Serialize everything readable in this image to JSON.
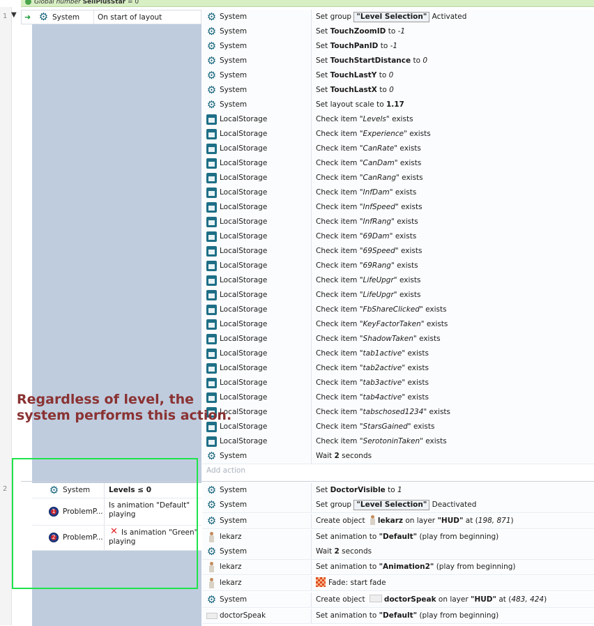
{
  "top_variable": {
    "prefix": "Global number",
    "name": "SellPlusStar",
    "suffix": "= 0"
  },
  "events": [
    {
      "number": "1",
      "conditions": [
        {
          "object": "System",
          "icon": "gear-icon",
          "text": "On start of layout"
        }
      ],
      "actions": [
        {
          "object": "System",
          "icon": "gear-icon",
          "parts": [
            {
              "t": "Set group "
            },
            {
              "t": "\"Level Selection\"",
              "s": "group"
            },
            {
              "t": " Activated"
            }
          ]
        },
        {
          "object": "System",
          "icon": "gear-icon",
          "parts": [
            {
              "t": "Set "
            },
            {
              "t": "TouchZoomID",
              "s": "b"
            },
            {
              "t": " to "
            },
            {
              "t": "-1",
              "s": "i"
            }
          ]
        },
        {
          "object": "System",
          "icon": "gear-icon",
          "parts": [
            {
              "t": "Set "
            },
            {
              "t": "TouchPanID",
              "s": "b"
            },
            {
              "t": " to "
            },
            {
              "t": "-1",
              "s": "i"
            }
          ]
        },
        {
          "object": "System",
          "icon": "gear-icon",
          "parts": [
            {
              "t": "Set "
            },
            {
              "t": "TouchStartDistance",
              "s": "b"
            },
            {
              "t": " to "
            },
            {
              "t": "0",
              "s": "i"
            }
          ]
        },
        {
          "object": "System",
          "icon": "gear-icon",
          "parts": [
            {
              "t": "Set "
            },
            {
              "t": "TouchLastY",
              "s": "b"
            },
            {
              "t": " to "
            },
            {
              "t": "0",
              "s": "i"
            }
          ]
        },
        {
          "object": "System",
          "icon": "gear-icon",
          "parts": [
            {
              "t": "Set "
            },
            {
              "t": "TouchLastX",
              "s": "b"
            },
            {
              "t": " to "
            },
            {
              "t": "0",
              "s": "i"
            }
          ]
        },
        {
          "object": "System",
          "icon": "gear-icon",
          "parts": [
            {
              "t": "Set layout scale to "
            },
            {
              "t": "1.17",
              "s": "b"
            }
          ]
        },
        {
          "object": "LocalStorage",
          "icon": "localstorage-icon",
          "parts": [
            {
              "t": "Check item "
            },
            {
              "t": "\"Levels\"",
              "s": "i"
            },
            {
              "t": " exists"
            }
          ]
        },
        {
          "object": "LocalStorage",
          "icon": "localstorage-icon",
          "parts": [
            {
              "t": "Check item "
            },
            {
              "t": "\"Experience\"",
              "s": "i"
            },
            {
              "t": " exists"
            }
          ]
        },
        {
          "object": "LocalStorage",
          "icon": "localstorage-icon",
          "parts": [
            {
              "t": "Check item "
            },
            {
              "t": "\"CanRate\"",
              "s": "i"
            },
            {
              "t": " exists"
            }
          ]
        },
        {
          "object": "LocalStorage",
          "icon": "localstorage-icon",
          "parts": [
            {
              "t": "Check item "
            },
            {
              "t": "\"CanDam\"",
              "s": "i"
            },
            {
              "t": " exists"
            }
          ]
        },
        {
          "object": "LocalStorage",
          "icon": "localstorage-icon",
          "parts": [
            {
              "t": "Check item "
            },
            {
              "t": "\"CanRang\"",
              "s": "i"
            },
            {
              "t": " exists"
            }
          ]
        },
        {
          "object": "LocalStorage",
          "icon": "localstorage-icon",
          "parts": [
            {
              "t": "Check item "
            },
            {
              "t": "\"InfDam\"",
              "s": "i"
            },
            {
              "t": " exists"
            }
          ]
        },
        {
          "object": "LocalStorage",
          "icon": "localstorage-icon",
          "parts": [
            {
              "t": "Check item "
            },
            {
              "t": "\"InfSpeed\"",
              "s": "i"
            },
            {
              "t": " exists"
            }
          ]
        },
        {
          "object": "LocalStorage",
          "icon": "localstorage-icon",
          "parts": [
            {
              "t": "Check item "
            },
            {
              "t": "\"InfRang\"",
              "s": "i"
            },
            {
              "t": " exists"
            }
          ]
        },
        {
          "object": "LocalStorage",
          "icon": "localstorage-icon",
          "parts": [
            {
              "t": "Check item "
            },
            {
              "t": "\"69Dam\"",
              "s": "i"
            },
            {
              "t": " exists"
            }
          ]
        },
        {
          "object": "LocalStorage",
          "icon": "localstorage-icon",
          "parts": [
            {
              "t": "Check item "
            },
            {
              "t": "\"69Speed\"",
              "s": "i"
            },
            {
              "t": " exists"
            }
          ]
        },
        {
          "object": "LocalStorage",
          "icon": "localstorage-icon",
          "parts": [
            {
              "t": "Check item "
            },
            {
              "t": "\"69Rang\"",
              "s": "i"
            },
            {
              "t": " exists"
            }
          ]
        },
        {
          "object": "LocalStorage",
          "icon": "localstorage-icon",
          "parts": [
            {
              "t": "Check item "
            },
            {
              "t": "\"LifeUpgr\"",
              "s": "i"
            },
            {
              "t": " exists"
            }
          ]
        },
        {
          "object": "LocalStorage",
          "icon": "localstorage-icon",
          "parts": [
            {
              "t": "Check item "
            },
            {
              "t": "\"LifeUpgr\"",
              "s": "i"
            },
            {
              "t": " exists"
            }
          ]
        },
        {
          "object": "LocalStorage",
          "icon": "localstorage-icon",
          "parts": [
            {
              "t": "Check item "
            },
            {
              "t": "\"FbShareClicked\"",
              "s": "i"
            },
            {
              "t": " exists"
            }
          ]
        },
        {
          "object": "LocalStorage",
          "icon": "localstorage-icon",
          "parts": [
            {
              "t": "Check item "
            },
            {
              "t": "\"KeyFactorTaken\"",
              "s": "i"
            },
            {
              "t": " exists"
            }
          ]
        },
        {
          "object": "LocalStorage",
          "icon": "localstorage-icon",
          "parts": [
            {
              "t": "Check item "
            },
            {
              "t": "\"ShadowTaken\"",
              "s": "i"
            },
            {
              "t": " exists"
            }
          ]
        },
        {
          "object": "LocalStorage",
          "icon": "localstorage-icon",
          "parts": [
            {
              "t": "Check item "
            },
            {
              "t": "\"tab1active\"",
              "s": "i"
            },
            {
              "t": " exists"
            }
          ]
        },
        {
          "object": "LocalStorage",
          "icon": "localstorage-icon",
          "parts": [
            {
              "t": "Check item "
            },
            {
              "t": "\"tab2active\"",
              "s": "i"
            },
            {
              "t": " exists"
            }
          ]
        },
        {
          "object": "LocalStorage",
          "icon": "localstorage-icon",
          "parts": [
            {
              "t": "Check item "
            },
            {
              "t": "\"tab3active\"",
              "s": "i"
            },
            {
              "t": " exists"
            }
          ]
        },
        {
          "object": "LocalStorage",
          "icon": "localstorage-icon",
          "parts": [
            {
              "t": "Check item "
            },
            {
              "t": "\"tab4active\"",
              "s": "i"
            },
            {
              "t": " exists"
            }
          ]
        },
        {
          "object": "LocalStorage",
          "icon": "localstorage-icon",
          "parts": [
            {
              "t": "Check item "
            },
            {
              "t": "\"tabschosed1234\"",
              "s": "i"
            },
            {
              "t": " exists"
            }
          ]
        },
        {
          "object": "LocalStorage",
          "icon": "localstorage-icon",
          "parts": [
            {
              "t": "Check item "
            },
            {
              "t": "\"StarsGained\"",
              "s": "i"
            },
            {
              "t": " exists"
            }
          ]
        },
        {
          "object": "LocalStorage",
          "icon": "localstorage-icon",
          "parts": [
            {
              "t": "Check item "
            },
            {
              "t": "\"SerotoninTaken\"",
              "s": "i"
            },
            {
              "t": " exists"
            }
          ]
        },
        {
          "object": "System",
          "icon": "gear-icon",
          "parts": [
            {
              "t": "Wait "
            },
            {
              "t": "2",
              "s": "b"
            },
            {
              "t": " seconds"
            }
          ]
        }
      ],
      "add_action_label": "Add action"
    },
    {
      "number": "2",
      "conditions": [
        {
          "object": "System",
          "icon": "gear-icon",
          "text": "Levels ≤ 0"
        },
        {
          "object": "ProblemP...",
          "icon": "problem-badge-icon",
          "badge": "1",
          "text": "Is animation \"Default\" playing"
        },
        {
          "object": "ProblemP...",
          "icon": "problem-badge-icon",
          "badge": "2",
          "inverted": true,
          "text": "Is animation \"Green\" playing"
        }
      ],
      "actions": [
        {
          "object": "System",
          "icon": "gear-icon",
          "parts": [
            {
              "t": "Set "
            },
            {
              "t": "DoctorVisible",
              "s": "b"
            },
            {
              "t": " to "
            },
            {
              "t": "1",
              "s": "i"
            }
          ]
        },
        {
          "object": "System",
          "icon": "gear-icon",
          "parts": [
            {
              "t": "Set group "
            },
            {
              "t": "\"Level Selection\"",
              "s": "group"
            },
            {
              "t": " Deactivated"
            }
          ]
        },
        {
          "object": "System",
          "icon": "gear-icon",
          "parts": [
            {
              "t": "Create object "
            },
            {
              "t": "",
              "s": "person"
            },
            {
              "t": "lekarz",
              "s": "b"
            },
            {
              "t": " on layer "
            },
            {
              "t": "\"HUD\"",
              "s": "b"
            },
            {
              "t": " at ("
            },
            {
              "t": "198, 871",
              "s": "i"
            },
            {
              "t": ")"
            }
          ]
        },
        {
          "object": "lekarz",
          "icon": "person-icon",
          "parts": [
            {
              "t": "Set animation to "
            },
            {
              "t": "\"Default\"",
              "s": "b"
            },
            {
              "t": " (play from beginning)"
            }
          ]
        },
        {
          "object": "System",
          "icon": "gear-icon",
          "parts": [
            {
              "t": "Wait "
            },
            {
              "t": "2",
              "s": "b"
            },
            {
              "t": " seconds"
            }
          ]
        },
        {
          "object": "lekarz",
          "icon": "person-icon",
          "parts": [
            {
              "t": "Set animation to "
            },
            {
              "t": "\"Animation2\"",
              "s": "b"
            },
            {
              "t": " (play from beginning)"
            }
          ]
        },
        {
          "object": "lekarz",
          "icon": "person-icon",
          "parts": [
            {
              "t": "",
              "s": "fade"
            },
            {
              "t": "Fade: start fade"
            }
          ]
        },
        {
          "object": "System",
          "icon": "gear-icon",
          "parts": [
            {
              "t": "Create object "
            },
            {
              "t": "",
              "s": "sprite"
            },
            {
              "t": "doctorSpeak",
              "s": "b"
            },
            {
              "t": " on layer "
            },
            {
              "t": "\"HUD\"",
              "s": "b"
            },
            {
              "t": " at ("
            },
            {
              "t": "483, 424",
              "s": "i"
            },
            {
              "t": ")"
            }
          ]
        },
        {
          "object": "doctorSpeak",
          "icon": "sprite-icon",
          "parts": [
            {
              "t": "Set animation to "
            },
            {
              "t": "\"Default\"",
              "s": "b"
            },
            {
              "t": " (play from beginning)"
            }
          ]
        }
      ]
    }
  ],
  "annotation": "Regardless of level, the system performs this action.",
  "colors": {
    "annotation": "#8a3232",
    "highlight_box": "#1ee34b",
    "condition_column": "#bfccde",
    "icon_teal": "#17667d"
  }
}
